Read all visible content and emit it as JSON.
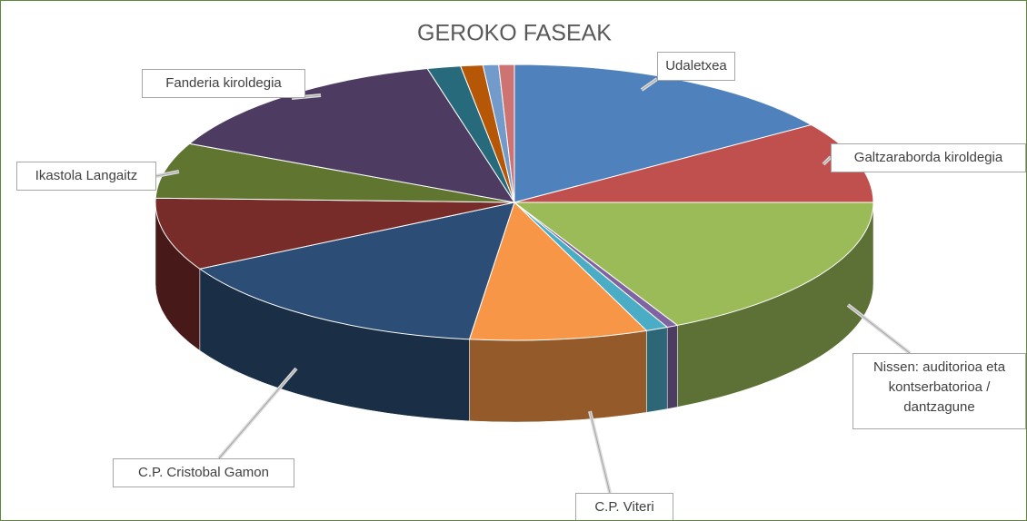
{
  "chart_data": {
    "type": "pie3d",
    "title": "GEROKO FASEAK",
    "categories": [
      "Udaletxea",
      "Galtzaraborda kiroldegia",
      "Nissen: auditorioa eta kontserbatorioa / dantzagune",
      null,
      null,
      "C.P. Viteri",
      "C.P. Cristobal Gamon",
      null,
      "Ikastola Langaitz",
      "Fanderia kiroldegia",
      null,
      null,
      null,
      null
    ],
    "values": [
      15.5,
      9.5,
      17.5,
      0.5,
      1,
      8,
      15,
      8.5,
      6.5,
      14.1,
      1.5,
      1,
      0.7,
      0.7
    ],
    "colors": [
      "#4f81bd",
      "#c0504d",
      "#9bbb59",
      "#8064a2",
      "#4bacc6",
      "#f79646",
      "#2c4d75",
      "#772c2a",
      "#5f7530",
      "#4d3b62",
      "#276a7c",
      "#b65708",
      "#729aca",
      "#cd7371"
    ]
  }
}
